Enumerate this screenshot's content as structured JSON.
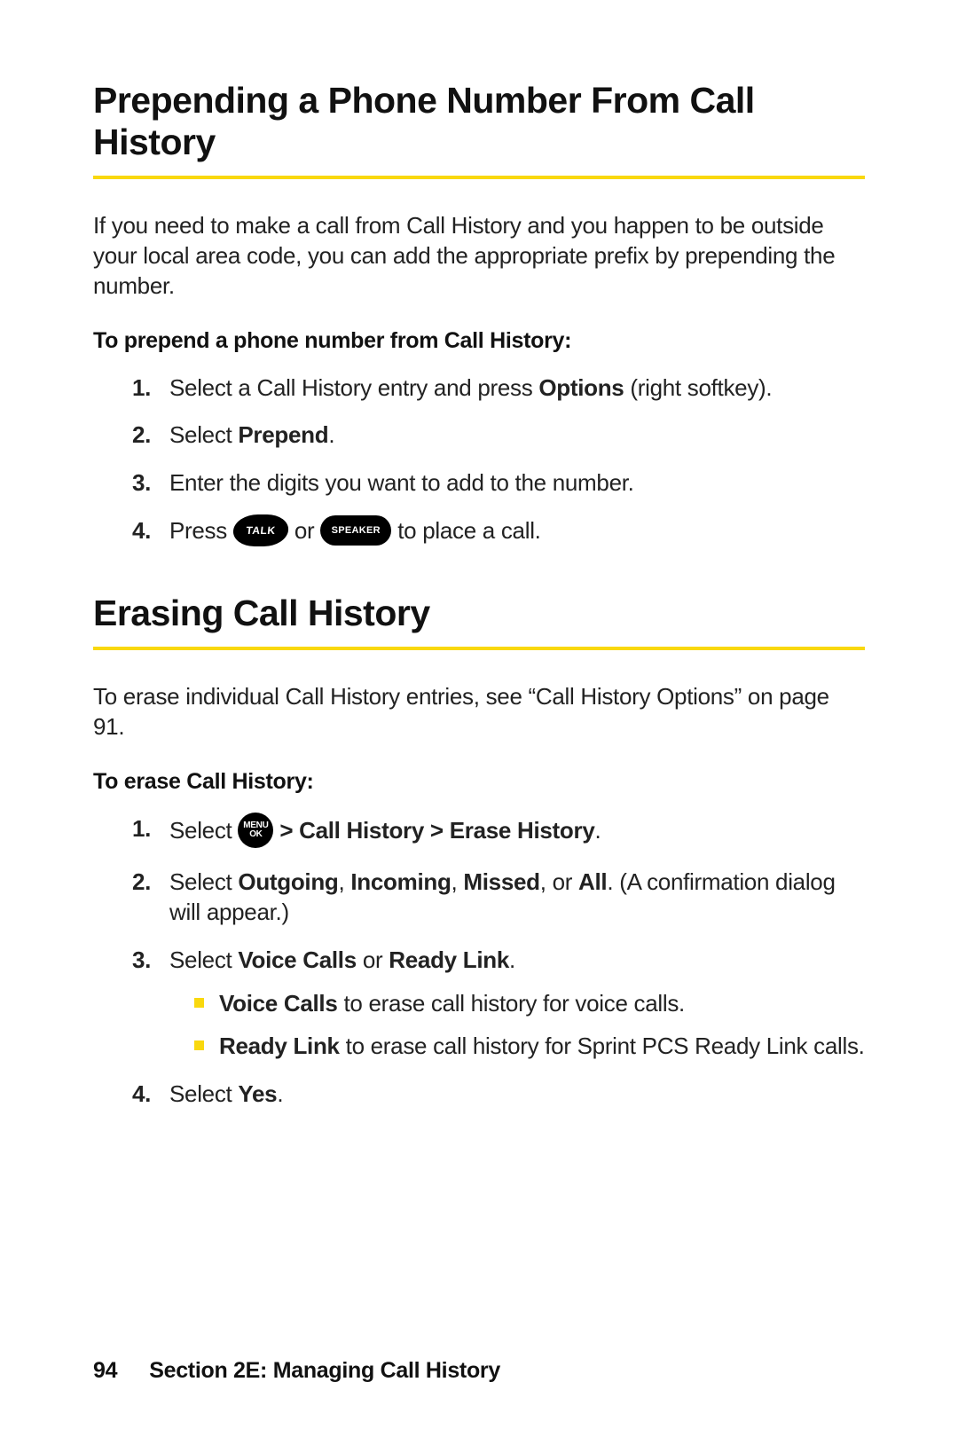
{
  "heading1": "Prepending a Phone Number From Call History",
  "intro1": "If you need to make a call from Call History and you happen to be outside your local area code, you can add the appropriate prefix by prepending the number.",
  "subhead1": "To prepend a phone number from Call History:",
  "steps1": {
    "s1a": "Select a Call History entry and press ",
    "s1b": "Options",
    "s1c": " (right softkey).",
    "s2a": "Select ",
    "s2b": "Prepend",
    "s2c": ".",
    "s3": "Enter the digits you want to add to the number.",
    "s4a": "Press ",
    "s4b": " or ",
    "s4c": " to place a call."
  },
  "key_talk": "TALK",
  "key_speaker": "SPEAKER",
  "key_menu_top": "MENU",
  "key_menu_bot": "OK",
  "heading2": "Erasing Call History",
  "intro2": "To erase individual Call History entries, see “Call History Options” on page 91.",
  "subhead2": "To erase Call History:",
  "steps2": {
    "s1a": "Select ",
    "s1b": " > Call History > Erase History",
    "s1c": ".",
    "s2a": "Select ",
    "s2b": "Outgoing",
    "s2c": ", ",
    "s2d": "Incoming",
    "s2e": ", ",
    "s2f": "Missed",
    "s2g": ", or ",
    "s2h": "All",
    "s2i": ". (A confirmation dialog will appear.)",
    "s3a": "Select ",
    "s3b": "Voice Calls",
    "s3c": " or ",
    "s3d": "Ready Link",
    "s3e": ".",
    "s3_sub1a": "Voice Calls",
    "s3_sub1b": " to erase call history for voice calls.",
    "s3_sub2a": "Ready Link",
    "s3_sub2b": " to erase call history for Sprint PCS Ready Link calls.",
    "s4a": "Select ",
    "s4b": "Yes",
    "s4c": "."
  },
  "footer": {
    "page": "94",
    "section": "Section 2E:  Managing Call History"
  },
  "colors": {
    "accent": "#f9d80e",
    "text": "#111111",
    "background": "#ffffff"
  }
}
